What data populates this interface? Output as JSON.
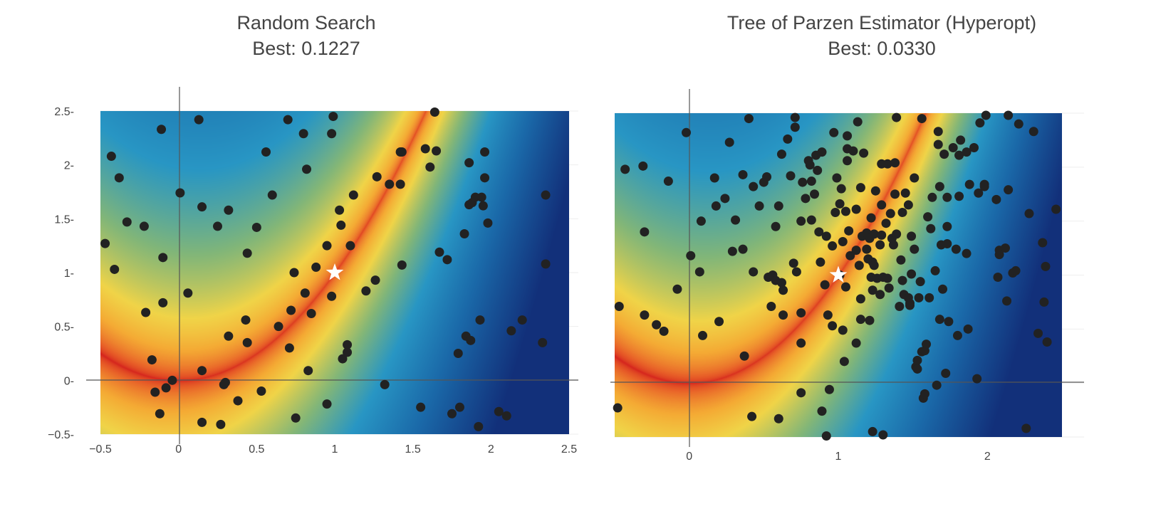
{
  "chart_data": [
    {
      "type": "scatter",
      "title": "Random Search",
      "subtitle": "Best: 0.1227",
      "xlim": [
        -0.5,
        2.5
      ],
      "ylim": [
        -0.5,
        2.5
      ],
      "x_ticks": [
        "−0.5",
        "0",
        "0.5",
        "1",
        "1.5",
        "2",
        "2.5"
      ],
      "x_tick_values": [
        -0.5,
        0,
        0.5,
        1,
        1.5,
        2,
        2.5
      ],
      "y_ticks": [
        "−0.5",
        "0",
        "0.5",
        "1",
        "1.5",
        "2",
        "2.5"
      ],
      "y_tick_values": [
        -0.5,
        0,
        0.5,
        1,
        1.5,
        2,
        2.5
      ],
      "background": "heatmap",
      "optimum": [
        1,
        1
      ],
      "points": [
        [
          -0.47,
          1.27
        ],
        [
          -0.43,
          2.08
        ],
        [
          -0.41,
          1.03
        ],
        [
          -0.38,
          1.88
        ],
        [
          -0.33,
          1.47
        ],
        [
          -0.22,
          1.43
        ],
        [
          -0.21,
          0.63
        ],
        [
          -0.17,
          0.19
        ],
        [
          -0.15,
          -0.11
        ],
        [
          -0.12,
          -0.31
        ],
        [
          -0.11,
          2.33
        ],
        [
          -0.1,
          1.14
        ],
        [
          -0.1,
          0.72
        ],
        [
          -0.08,
          -0.07
        ],
        [
          -0.04,
          0.0
        ],
        [
          0.01,
          1.74
        ],
        [
          0.06,
          0.81
        ],
        [
          0.13,
          2.42
        ],
        [
          0.15,
          1.61
        ],
        [
          0.15,
          0.09
        ],
        [
          0.15,
          -0.39
        ],
        [
          0.25,
          1.43
        ],
        [
          0.27,
          -0.41
        ],
        [
          0.29,
          -0.04
        ],
        [
          0.3,
          -0.02
        ],
        [
          0.32,
          0.41
        ],
        [
          0.32,
          1.58
        ],
        [
          0.38,
          -0.19
        ],
        [
          0.43,
          0.56
        ],
        [
          0.44,
          1.18
        ],
        [
          0.44,
          0.35
        ],
        [
          0.5,
          1.42
        ],
        [
          0.53,
          -0.1
        ],
        [
          0.56,
          2.12
        ],
        [
          0.6,
          1.72
        ],
        [
          0.64,
          0.5
        ],
        [
          0.7,
          2.42
        ],
        [
          0.71,
          0.3
        ],
        [
          0.72,
          0.65
        ],
        [
          0.74,
          1.0
        ],
        [
          0.75,
          -0.35
        ],
        [
          0.8,
          2.29
        ],
        [
          0.81,
          0.81
        ],
        [
          0.82,
          1.96
        ],
        [
          0.83,
          0.09
        ],
        [
          0.85,
          0.62
        ],
        [
          0.88,
          1.05
        ],
        [
          0.95,
          1.25
        ],
        [
          0.95,
          -0.22
        ],
        [
          0.98,
          2.29
        ],
        [
          0.98,
          0.78
        ],
        [
          0.99,
          2.45
        ],
        [
          1.03,
          1.58
        ],
        [
          1.04,
          1.44
        ],
        [
          1.05,
          0.2
        ],
        [
          1.08,
          0.33
        ],
        [
          1.08,
          0.26
        ],
        [
          1.1,
          1.25
        ],
        [
          1.12,
          1.72
        ],
        [
          1.2,
          0.83
        ],
        [
          1.26,
          0.93
        ],
        [
          1.27,
          1.89
        ],
        [
          1.32,
          -0.04
        ],
        [
          1.35,
          1.82
        ],
        [
          1.42,
          2.12
        ],
        [
          1.42,
          1.82
        ],
        [
          1.43,
          1.07
        ],
        [
          1.43,
          2.12
        ],
        [
          1.55,
          -0.25
        ],
        [
          1.58,
          2.15
        ],
        [
          1.61,
          1.98
        ],
        [
          1.64,
          2.49
        ],
        [
          1.65,
          2.13
        ],
        [
          1.67,
          1.19
        ],
        [
          1.72,
          1.12
        ],
        [
          1.75,
          -0.31
        ],
        [
          1.79,
          0.25
        ],
        [
          1.8,
          -0.25
        ],
        [
          1.83,
          1.36
        ],
        [
          1.84,
          0.41
        ],
        [
          1.86,
          1.63
        ],
        [
          1.86,
          2.02
        ],
        [
          1.87,
          0.37
        ],
        [
          1.88,
          1.65
        ],
        [
          1.9,
          1.7
        ],
        [
          1.92,
          -0.43
        ],
        [
          1.93,
          0.56
        ],
        [
          1.94,
          1.7
        ],
        [
          1.95,
          1.62
        ],
        [
          1.96,
          2.12
        ],
        [
          1.96,
          1.88
        ],
        [
          1.98,
          1.46
        ],
        [
          2.05,
          -0.29
        ],
        [
          2.1,
          -0.33
        ],
        [
          2.13,
          0.46
        ],
        [
          2.2,
          0.56
        ],
        [
          2.33,
          0.35
        ],
        [
          2.35,
          1.72
        ],
        [
          2.35,
          1.08
        ]
      ]
    },
    {
      "type": "scatter",
      "title": "Tree of Parzen Estimator (Hyperopt)",
      "subtitle": "Best: 0.0330",
      "xlim": [
        -0.5,
        2.5
      ],
      "ylim": [
        -0.5,
        2.5
      ],
      "x_ticks": [
        "0",
        "1",
        "2"
      ],
      "x_tick_values": [
        0,
        1,
        2
      ],
      "y_ticks": [],
      "y_tick_values": [],
      "background": "heatmap",
      "optimum": [
        1,
        1
      ],
      "points": [
        [
          -0.48,
          -0.23
        ],
        [
          -0.47,
          0.71
        ],
        [
          -0.43,
          1.98
        ],
        [
          -0.31,
          2.01
        ],
        [
          -0.3,
          0.63
        ],
        [
          -0.3,
          1.4
        ],
        [
          -0.22,
          0.54
        ],
        [
          -0.17,
          0.48
        ],
        [
          -0.14,
          1.87
        ],
        [
          -0.08,
          0.87
        ],
        [
          -0.02,
          2.32
        ],
        [
          0.01,
          1.18
        ],
        [
          0.07,
          1.03
        ],
        [
          0.08,
          1.5
        ],
        [
          0.09,
          0.44
        ],
        [
          0.17,
          1.9
        ],
        [
          0.18,
          1.64
        ],
        [
          0.2,
          0.57
        ],
        [
          0.24,
          1.71
        ],
        [
          0.27,
          2.23
        ],
        [
          0.29,
          1.22
        ],
        [
          0.31,
          1.51
        ],
        [
          0.36,
          1.24
        ],
        [
          0.36,
          1.93
        ],
        [
          0.37,
          0.25
        ],
        [
          0.4,
          2.45
        ],
        [
          0.42,
          -0.31
        ],
        [
          0.43,
          1.82
        ],
        [
          0.43,
          1.03
        ],
        [
          0.47,
          1.64
        ],
        [
          0.5,
          1.86
        ],
        [
          0.52,
          1.91
        ],
        [
          0.53,
          0.98
        ],
        [
          0.55,
          0.71
        ],
        [
          0.56,
          1.0
        ],
        [
          0.58,
          1.45
        ],
        [
          0.58,
          0.95
        ],
        [
          0.6,
          1.64
        ],
        [
          0.6,
          -0.33
        ],
        [
          0.62,
          2.12
        ],
        [
          0.62,
          0.93
        ],
        [
          0.63,
          0.63
        ],
        [
          0.63,
          0.86
        ],
        [
          0.66,
          2.26
        ],
        [
          0.68,
          1.92
        ],
        [
          0.7,
          1.11
        ],
        [
          0.71,
          2.46
        ],
        [
          0.71,
          2.37
        ],
        [
          0.72,
          1.03
        ],
        [
          0.75,
          0.65
        ],
        [
          0.75,
          1.5
        ],
        [
          0.75,
          0.37
        ],
        [
          0.75,
          -0.09
        ],
        [
          0.76,
          1.86
        ],
        [
          0.78,
          1.71
        ],
        [
          0.8,
          2.06
        ],
        [
          0.81,
          2.02
        ],
        [
          0.82,
          1.51
        ],
        [
          0.82,
          1.87
        ],
        [
          0.84,
          1.75
        ],
        [
          0.85,
          2.11
        ],
        [
          0.86,
          1.97
        ],
        [
          0.87,
          1.4
        ],
        [
          0.88,
          1.12
        ],
        [
          0.89,
          2.14
        ],
        [
          0.89,
          -0.26
        ],
        [
          0.91,
          0.91
        ],
        [
          0.92,
          1.36
        ],
        [
          0.92,
          -0.49
        ],
        [
          0.93,
          0.63
        ],
        [
          0.94,
          -0.06
        ],
        [
          0.96,
          0.53
        ],
        [
          0.96,
          1.27
        ],
        [
          0.97,
          2.32
        ],
        [
          0.98,
          1.58
        ],
        [
          0.99,
          1.9
        ],
        [
          1.01,
          1.0
        ],
        [
          1.01,
          1.66
        ],
        [
          1.02,
          1.8
        ],
        [
          1.03,
          0.49
        ],
        [
          1.03,
          1.31
        ],
        [
          1.04,
          0.2
        ],
        [
          1.05,
          0.89
        ],
        [
          1.05,
          1.59
        ],
        [
          1.06,
          2.17
        ],
        [
          1.06,
          2.29
        ],
        [
          1.06,
          2.06
        ],
        [
          1.07,
          1.41
        ],
        [
          1.08,
          1.18
        ],
        [
          1.1,
          2.15
        ],
        [
          1.12,
          1.23
        ],
        [
          1.12,
          0.37
        ],
        [
          1.12,
          1.61
        ],
        [
          1.13,
          2.42
        ],
        [
          1.14,
          1.09
        ],
        [
          1.15,
          0.78
        ],
        [
          1.15,
          1.81
        ],
        [
          1.15,
          0.59
        ],
        [
          1.16,
          1.36
        ],
        [
          1.17,
          2.13
        ],
        [
          1.19,
          1.24
        ],
        [
          1.19,
          1.39
        ],
        [
          1.2,
          1.15
        ],
        [
          1.21,
          1.34
        ],
        [
          1.21,
          0.58
        ],
        [
          1.22,
          0.98
        ],
        [
          1.22,
          1.53
        ],
        [
          1.23,
          1.12
        ],
        [
          1.23,
          0.86
        ],
        [
          1.23,
          -0.45
        ],
        [
          1.24,
          1.38
        ],
        [
          1.24,
          1.09
        ],
        [
          1.25,
          1.78
        ],
        [
          1.26,
          0.97
        ],
        [
          1.28,
          0.82
        ],
        [
          1.28,
          1.28
        ],
        [
          1.29,
          1.65
        ],
        [
          1.29,
          2.03
        ],
        [
          1.29,
          1.37
        ],
        [
          1.3,
          0.98
        ],
        [
          1.3,
          -0.48
        ],
        [
          1.32,
          1.48
        ],
        [
          1.33,
          0.97
        ],
        [
          1.33,
          2.03
        ],
        [
          1.34,
          0.88
        ],
        [
          1.35,
          1.57
        ],
        [
          1.36,
          1.34
        ],
        [
          1.37,
          1.28
        ],
        [
          1.38,
          2.04
        ],
        [
          1.38,
          1.75
        ],
        [
          1.39,
          2.46
        ],
        [
          1.39,
          1.38
        ],
        [
          1.41,
          0.71
        ],
        [
          1.42,
          1.14
        ],
        [
          1.43,
          0.95
        ],
        [
          1.43,
          1.58
        ],
        [
          1.44,
          0.82
        ],
        [
          1.45,
          1.76
        ],
        [
          1.47,
          0.79
        ],
        [
          1.47,
          1.65
        ],
        [
          1.48,
          0.74
        ],
        [
          1.48,
          0.72
        ],
        [
          1.49,
          1.01
        ],
        [
          1.49,
          1.36
        ],
        [
          1.51,
          1.24
        ],
        [
          1.51,
          1.9
        ],
        [
          1.52,
          0.15
        ],
        [
          1.53,
          0.13
        ],
        [
          1.53,
          0.21
        ],
        [
          1.54,
          0.79
        ],
        [
          1.55,
          0.94
        ],
        [
          1.56,
          2.45
        ],
        [
          1.56,
          0.29
        ],
        [
          1.57,
          -0.14
        ],
        [
          1.58,
          -0.1
        ],
        [
          1.58,
          0.3
        ],
        [
          1.59,
          0.36
        ],
        [
          1.6,
          1.54
        ],
        [
          1.61,
          0.79
        ],
        [
          1.62,
          1.43
        ],
        [
          1.63,
          1.72
        ],
        [
          1.65,
          1.04
        ],
        [
          1.66,
          -0.02
        ],
        [
          1.67,
          2.33
        ],
        [
          1.67,
          2.21
        ],
        [
          1.68,
          1.82
        ],
        [
          1.68,
          0.59
        ],
        [
          1.69,
          1.28
        ],
        [
          1.7,
          0.87
        ],
        [
          1.71,
          2.12
        ],
        [
          1.72,
          0.09
        ],
        [
          1.73,
          1.45
        ],
        [
          1.73,
          1.29
        ],
        [
          1.73,
          1.72
        ],
        [
          1.74,
          0.57
        ],
        [
          1.77,
          2.18
        ],
        [
          1.79,
          1.24
        ],
        [
          1.8,
          0.44
        ],
        [
          1.81,
          2.11
        ],
        [
          1.81,
          1.73
        ],
        [
          1.82,
          2.25
        ],
        [
          1.86,
          1.2
        ],
        [
          1.86,
          2.14
        ],
        [
          1.87,
          0.5
        ],
        [
          1.88,
          1.84
        ],
        [
          1.91,
          2.18
        ],
        [
          1.93,
          0.04
        ],
        [
          1.94,
          1.76
        ],
        [
          1.95,
          2.41
        ],
        [
          1.98,
          1.84
        ],
        [
          1.98,
          1.82
        ],
        [
          1.99,
          2.48
        ],
        [
          2.06,
          1.7
        ],
        [
          2.07,
          0.98
        ],
        [
          2.08,
          1.19
        ],
        [
          2.08,
          1.23
        ],
        [
          2.12,
          1.25
        ],
        [
          2.13,
          0.76
        ],
        [
          2.14,
          1.79
        ],
        [
          2.14,
          2.48
        ],
        [
          2.17,
          1.02
        ],
        [
          2.19,
          1.04
        ],
        [
          2.21,
          2.4
        ],
        [
          2.26,
          -0.42
        ],
        [
          2.28,
          1.57
        ],
        [
          2.31,
          2.33
        ],
        [
          2.34,
          0.46
        ],
        [
          2.37,
          1.3
        ],
        [
          2.38,
          0.75
        ],
        [
          2.39,
          1.08
        ],
        [
          2.4,
          0.38
        ],
        [
          2.46,
          1.61
        ]
      ]
    }
  ]
}
